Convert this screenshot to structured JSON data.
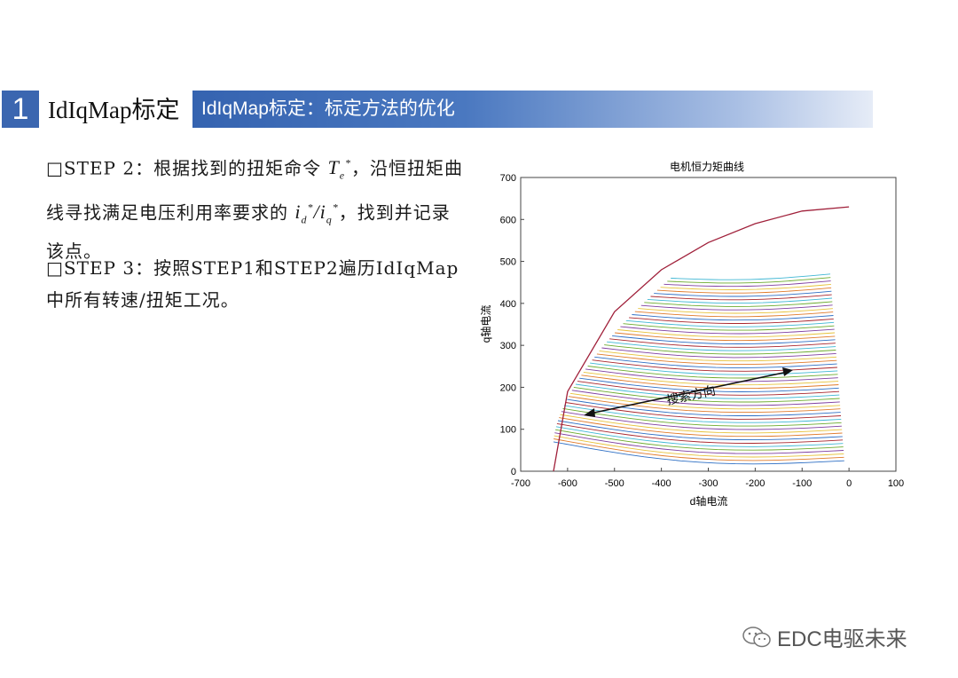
{
  "header": {
    "number": "1",
    "title": "IdIqMap标定",
    "bar_text": "IdIqMap标定：标定方法的优化",
    "bar_color": "#3563b0"
  },
  "text": {
    "step2_prefix": "□STEP 2：根据找到的扭矩命令 ",
    "step2_mid": "，沿恒扭矩曲线寻找满足电压利用率要求的 ",
    "step2_suffix": "，找到并记录该点。",
    "step3": "□STEP 3：按照STEP1和STEP2遍历IdIqMap中所有转速/扭矩工况。"
  },
  "chart_data": {
    "type": "line",
    "title": "电机恒力矩曲线",
    "xlabel": "d轴电流",
    "ylabel": "q轴电流",
    "xlim": [
      -700,
      100
    ],
    "ylim": [
      0,
      700
    ],
    "xticks": [
      "-700",
      "-600",
      "-500",
      "-400",
      "-300",
      "-200",
      "-100",
      "0",
      "100"
    ],
    "yticks": [
      "0",
      "100",
      "200",
      "300",
      "400",
      "500",
      "600",
      "700"
    ],
    "annotation": "搜索方向",
    "voltage_limit_curve": {
      "x": [
        -630,
        -600,
        -500,
        -400,
        -300,
        -200,
        -100,
        0
      ],
      "y": [
        0,
        190,
        380,
        480,
        545,
        590,
        620,
        630
      ]
    },
    "torque_curves": {
      "count": 55,
      "q_start_range": [
        70,
        460
      ],
      "d_start_range": [
        -630,
        -380
      ],
      "d_end": 0,
      "q_end_range": [
        25,
        470
      ]
    }
  },
  "watermark": "EDC电驱未来"
}
